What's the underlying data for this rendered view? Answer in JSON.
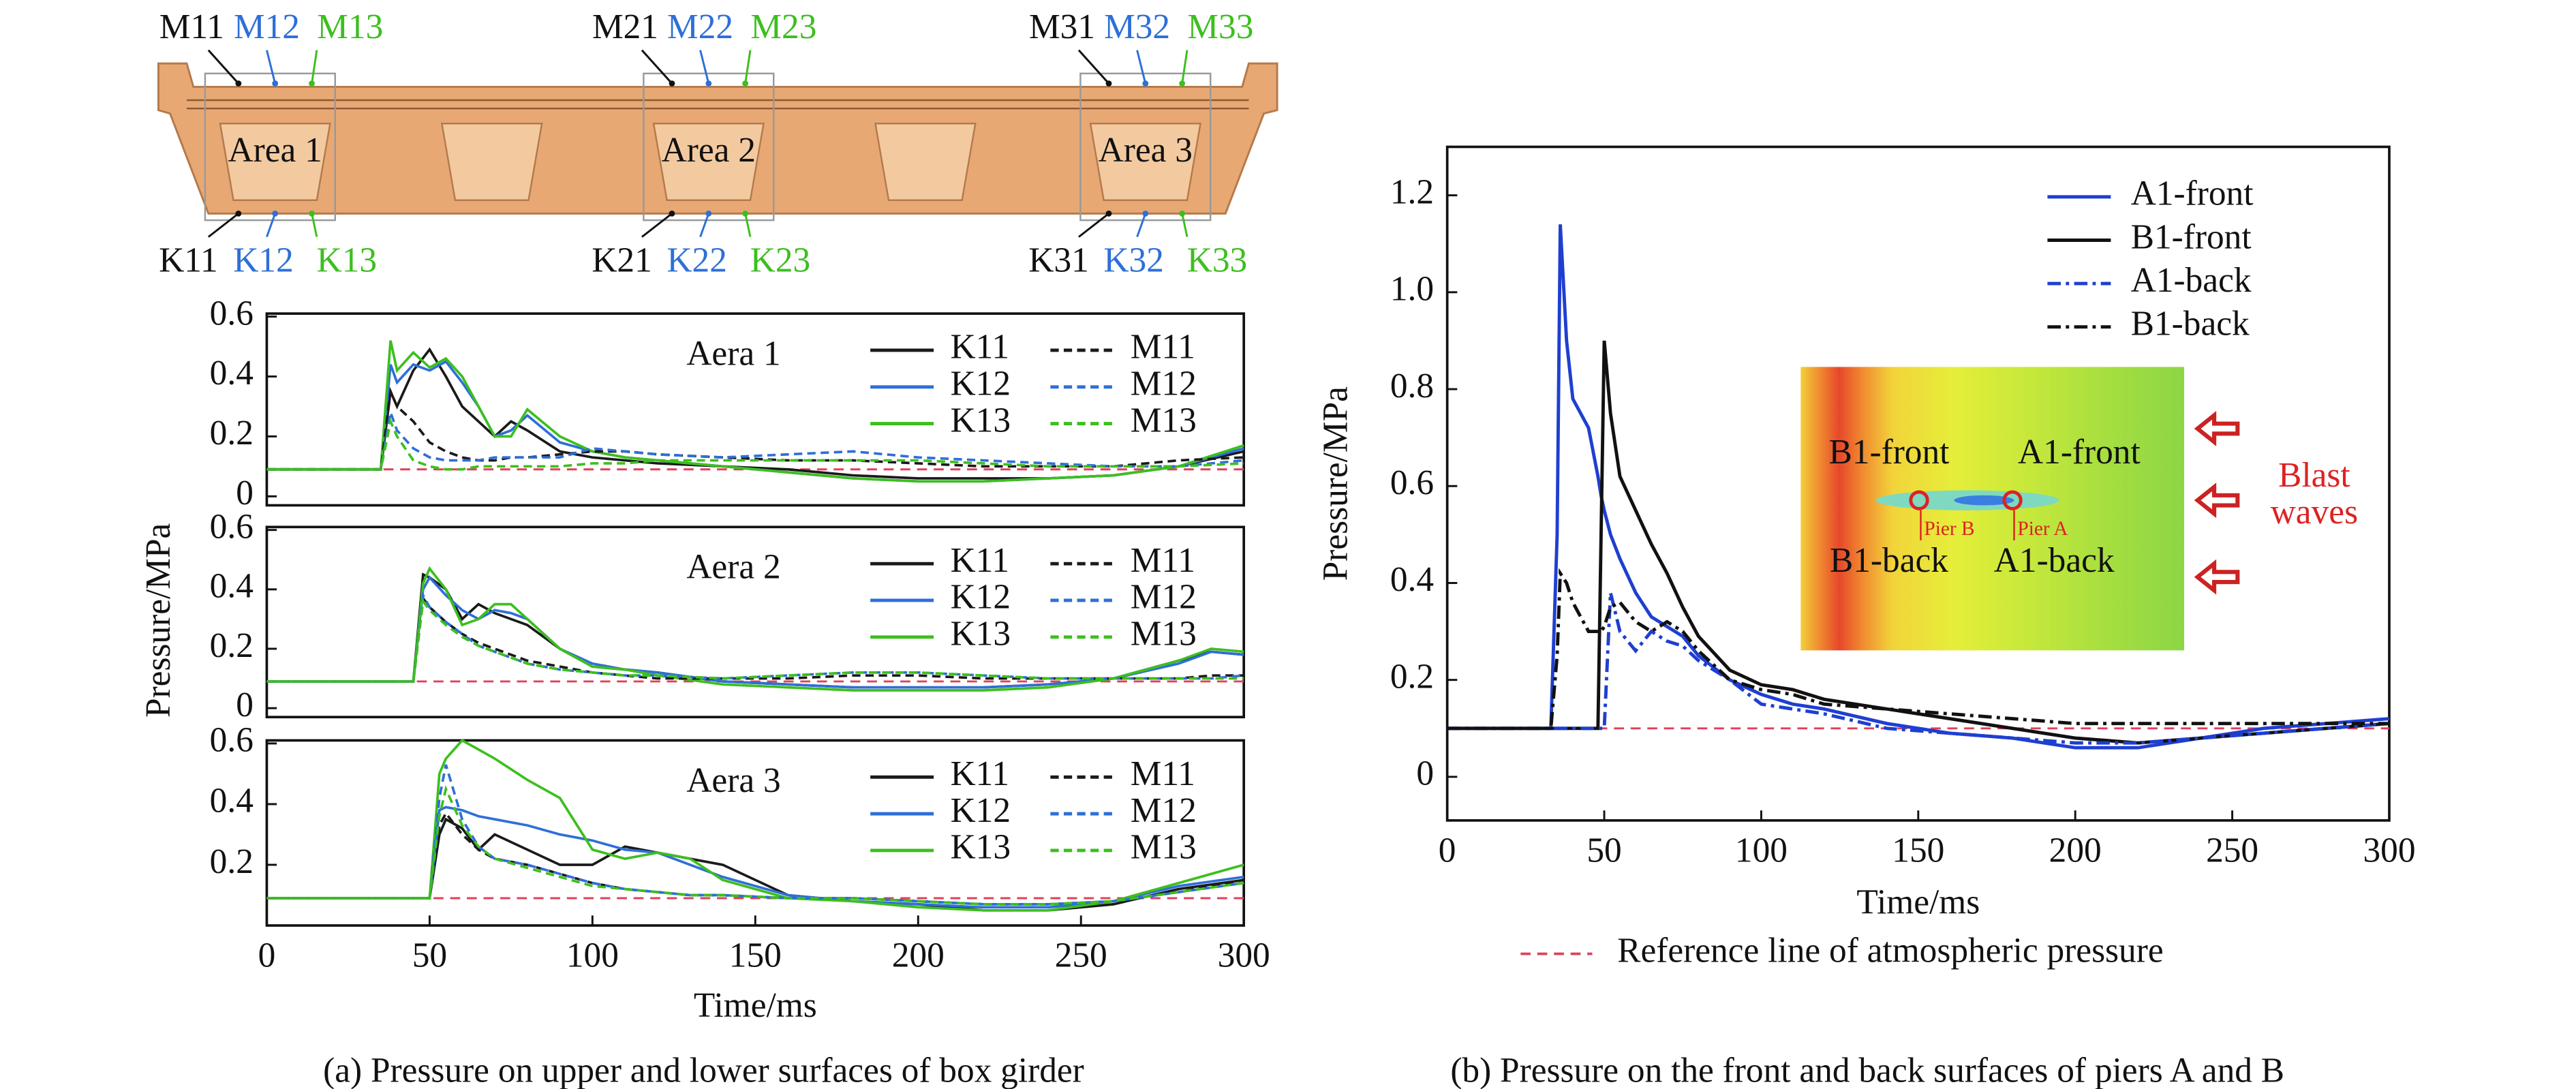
{
  "figure": {
    "captions": [
      "(a) Pressure on upper and lower surfaces of box girder",
      "(b) Pressure on the front and back surfaces of piers A and B"
    ]
  },
  "diagram": {
    "top_labels": [
      [
        "M11",
        "M12",
        "M13"
      ],
      [
        "M21",
        "M22",
        "M23"
      ],
      [
        "M31",
        "M32",
        "M33"
      ]
    ],
    "bottom_labels": [
      [
        "K11",
        "K12",
        "K13"
      ],
      [
        "K21",
        "K22",
        "K23"
      ],
      [
        "K31",
        "K32",
        "K33"
      ]
    ],
    "areas": [
      "Area 1",
      "Area 2",
      "Area 3"
    ]
  },
  "inset": {
    "labels": [
      "B1-front",
      "A1-front",
      "B1-back",
      "A1-back"
    ],
    "piers": [
      "Pier B",
      "Pier A"
    ],
    "blast": [
      "Blast",
      "waves"
    ]
  },
  "chart_data": [
    {
      "type": "line",
      "title": "Aera 1",
      "reference": 0.09,
      "ylim": [
        -0.03,
        0.61
      ],
      "yticks": [
        0,
        0.2,
        0.4,
        0.6
      ],
      "xlim": [
        0,
        300
      ],
      "x": [
        0,
        35,
        38,
        40,
        45,
        50,
        55,
        60,
        65,
        70,
        75,
        80,
        90,
        100,
        110,
        120,
        140,
        160,
        180,
        200,
        220,
        240,
        260,
        280,
        300
      ],
      "series": [
        {
          "name": "K11",
          "color": "#1a1a1a",
          "style": "solid",
          "values": [
            0.09,
            0.09,
            0.35,
            0.3,
            0.42,
            0.49,
            0.4,
            0.3,
            0.25,
            0.2,
            0.25,
            0.22,
            0.15,
            0.13,
            0.12,
            0.11,
            0.1,
            0.09,
            0.07,
            0.06,
            0.06,
            0.06,
            0.07,
            0.1,
            0.15
          ]
        },
        {
          "name": "K12",
          "color": "#2e6fd8",
          "style": "solid",
          "values": [
            0.09,
            0.09,
            0.44,
            0.38,
            0.44,
            0.42,
            0.45,
            0.38,
            0.3,
            0.2,
            0.22,
            0.27,
            0.18,
            0.15,
            0.13,
            0.12,
            0.1,
            0.08,
            0.06,
            0.05,
            0.05,
            0.06,
            0.07,
            0.1,
            0.16
          ]
        },
        {
          "name": "K13",
          "color": "#3cbf1e",
          "style": "solid",
          "values": [
            0.09,
            0.09,
            0.52,
            0.42,
            0.48,
            0.43,
            0.46,
            0.4,
            0.3,
            0.2,
            0.2,
            0.29,
            0.2,
            0.15,
            0.13,
            0.12,
            0.1,
            0.08,
            0.06,
            0.05,
            0.05,
            0.06,
            0.07,
            0.1,
            0.17
          ]
        },
        {
          "name": "M11",
          "color": "#1a1a1a",
          "style": "dash",
          "values": [
            0.09,
            0.09,
            0.35,
            0.3,
            0.25,
            0.18,
            0.15,
            0.13,
            0.12,
            0.12,
            0.13,
            0.13,
            0.14,
            0.15,
            0.15,
            0.14,
            0.13,
            0.12,
            0.12,
            0.11,
            0.1,
            0.1,
            0.1,
            0.12,
            0.13
          ]
        },
        {
          "name": "M12",
          "color": "#2e6fd8",
          "style": "dash",
          "values": [
            0.09,
            0.09,
            0.28,
            0.22,
            0.16,
            0.13,
            0.12,
            0.12,
            0.12,
            0.13,
            0.13,
            0.13,
            0.13,
            0.16,
            0.15,
            0.14,
            0.13,
            0.14,
            0.15,
            0.13,
            0.12,
            0.11,
            0.1,
            0.1,
            0.12
          ]
        },
        {
          "name": "M13",
          "color": "#3cbf1e",
          "style": "dash",
          "values": [
            0.09,
            0.09,
            0.25,
            0.2,
            0.12,
            0.1,
            0.09,
            0.09,
            0.1,
            0.1,
            0.1,
            0.1,
            0.1,
            0.11,
            0.11,
            0.12,
            0.12,
            0.12,
            0.12,
            0.12,
            0.11,
            0.1,
            0.1,
            0.1,
            0.11
          ]
        }
      ]
    },
    {
      "type": "line",
      "title": "Aera 2",
      "ylabel": "Pressure/MPa",
      "reference": 0.09,
      "ylim": [
        -0.03,
        0.61
      ],
      "yticks": [
        0,
        0.2,
        0.4,
        0.6
      ],
      "xlim": [
        0,
        300
      ],
      "x": [
        0,
        45,
        48,
        50,
        55,
        60,
        65,
        70,
        75,
        80,
        90,
        100,
        110,
        120,
        140,
        160,
        180,
        200,
        220,
        240,
        260,
        280,
        290,
        300
      ],
      "series": [
        {
          "name": "K11",
          "color": "#1a1a1a",
          "style": "solid",
          "values": [
            0.09,
            0.09,
            0.45,
            0.44,
            0.4,
            0.3,
            0.35,
            0.32,
            0.3,
            0.28,
            0.2,
            0.14,
            0.13,
            0.12,
            0.09,
            0.08,
            0.07,
            0.07,
            0.07,
            0.08,
            0.1,
            0.16,
            0.19,
            0.18
          ]
        },
        {
          "name": "K12",
          "color": "#2e6fd8",
          "style": "solid",
          "values": [
            0.09,
            0.09,
            0.4,
            0.44,
            0.38,
            0.33,
            0.3,
            0.33,
            0.32,
            0.3,
            0.2,
            0.15,
            0.13,
            0.12,
            0.09,
            0.08,
            0.07,
            0.07,
            0.07,
            0.08,
            0.1,
            0.15,
            0.19,
            0.18
          ]
        },
        {
          "name": "K13",
          "color": "#3cbf1e",
          "style": "solid",
          "values": [
            0.09,
            0.09,
            0.42,
            0.47,
            0.4,
            0.28,
            0.3,
            0.35,
            0.35,
            0.3,
            0.2,
            0.14,
            0.13,
            0.11,
            0.08,
            0.07,
            0.06,
            0.06,
            0.06,
            0.07,
            0.1,
            0.16,
            0.2,
            0.19
          ]
        },
        {
          "name": "M11",
          "color": "#1a1a1a",
          "style": "dash",
          "values": [
            0.09,
            0.09,
            0.37,
            0.34,
            0.29,
            0.25,
            0.22,
            0.2,
            0.18,
            0.16,
            0.14,
            0.12,
            0.11,
            0.1,
            0.1,
            0.1,
            0.11,
            0.11,
            0.1,
            0.1,
            0.1,
            0.1,
            0.11,
            0.11
          ]
        },
        {
          "name": "M12",
          "color": "#2e6fd8",
          "style": "dash",
          "values": [
            0.09,
            0.09,
            0.38,
            0.34,
            0.29,
            0.25,
            0.21,
            0.19,
            0.17,
            0.15,
            0.13,
            0.12,
            0.11,
            0.11,
            0.1,
            0.11,
            0.12,
            0.12,
            0.11,
            0.1,
            0.1,
            0.1,
            0.1,
            0.11
          ]
        },
        {
          "name": "M13",
          "color": "#3cbf1e",
          "style": "dash",
          "values": [
            0.09,
            0.09,
            0.36,
            0.33,
            0.28,
            0.24,
            0.21,
            0.19,
            0.17,
            0.15,
            0.13,
            0.12,
            0.11,
            0.11,
            0.1,
            0.11,
            0.12,
            0.12,
            0.11,
            0.1,
            0.1,
            0.1,
            0.1,
            0.1
          ]
        }
      ]
    },
    {
      "type": "line",
      "title": "Aera 3",
      "xlabel": "Time/ms",
      "reference": 0.09,
      "ylim": [
        0,
        0.61
      ],
      "yticks": [
        0.2,
        0.4,
        0.6
      ],
      "xlim": [
        0,
        300
      ],
      "xticks": [
        0,
        50,
        100,
        150,
        200,
        250,
        300
      ],
      "x": [
        0,
        50,
        53,
        55,
        60,
        65,
        70,
        80,
        90,
        100,
        110,
        120,
        130,
        140,
        160,
        180,
        200,
        220,
        240,
        260,
        280,
        300
      ],
      "series": [
        {
          "name": "K11",
          "color": "#1a1a1a",
          "style": "solid",
          "values": [
            0.09,
            0.09,
            0.3,
            0.35,
            0.32,
            0.25,
            0.3,
            0.25,
            0.2,
            0.2,
            0.26,
            0.24,
            0.22,
            0.2,
            0.1,
            0.08,
            0.07,
            0.05,
            0.05,
            0.07,
            0.12,
            0.15
          ]
        },
        {
          "name": "K12",
          "color": "#2e6fd8",
          "style": "solid",
          "values": [
            0.09,
            0.09,
            0.38,
            0.39,
            0.38,
            0.36,
            0.35,
            0.33,
            0.3,
            0.28,
            0.25,
            0.24,
            0.2,
            0.16,
            0.1,
            0.08,
            0.07,
            0.06,
            0.06,
            0.08,
            0.13,
            0.16
          ]
        },
        {
          "name": "K13",
          "color": "#3cbf1e",
          "style": "solid",
          "values": [
            0.09,
            0.09,
            0.5,
            0.55,
            0.61,
            0.58,
            0.55,
            0.48,
            0.42,
            0.25,
            0.22,
            0.24,
            0.22,
            0.15,
            0.09,
            0.08,
            0.06,
            0.05,
            0.05,
            0.08,
            0.14,
            0.2
          ]
        },
        {
          "name": "M11",
          "color": "#1a1a1a",
          "style": "dash",
          "values": [
            0.09,
            0.09,
            0.33,
            0.37,
            0.3,
            0.25,
            0.22,
            0.2,
            0.17,
            0.14,
            0.12,
            0.11,
            0.1,
            0.1,
            0.09,
            0.09,
            0.08,
            0.07,
            0.07,
            0.08,
            0.11,
            0.15
          ]
        },
        {
          "name": "M12",
          "color": "#2e6fd8",
          "style": "dash",
          "values": [
            0.09,
            0.09,
            0.42,
            0.53,
            0.35,
            0.26,
            0.22,
            0.2,
            0.17,
            0.14,
            0.12,
            0.11,
            0.1,
            0.1,
            0.09,
            0.09,
            0.08,
            0.07,
            0.07,
            0.08,
            0.11,
            0.14
          ]
        },
        {
          "name": "M13",
          "color": "#3cbf1e",
          "style": "dash",
          "values": [
            0.09,
            0.09,
            0.36,
            0.45,
            0.33,
            0.26,
            0.22,
            0.19,
            0.16,
            0.13,
            0.12,
            0.11,
            0.1,
            0.1,
            0.09,
            0.09,
            0.08,
            0.07,
            0.07,
            0.08,
            0.11,
            0.14
          ]
        }
      ]
    },
    {
      "type": "line",
      "xlabel": "Time/ms",
      "ylabel": "Pressure/MPa",
      "reference": 0.1,
      "reference_label": "Reference line of atmospheric pressure",
      "xlim": [
        0,
        300
      ],
      "xticks": [
        0,
        50,
        100,
        150,
        200,
        250,
        300
      ],
      "ylim": [
        -0.09,
        1.3
      ],
      "yticks": [
        0,
        0.2,
        0.4,
        0.6,
        0.8,
        {
          "value": 1,
          "label": "1.0"
        },
        1.2
      ],
      "x": [
        0,
        33,
        35,
        36,
        38,
        40,
        45,
        48,
        49,
        50,
        52,
        55,
        60,
        65,
        70,
        75,
        80,
        90,
        100,
        110,
        120,
        140,
        160,
        180,
        200,
        220,
        240,
        260,
        280,
        300
      ],
      "series": [
        {
          "name": "A1-front",
          "color": "#1f3fd0",
          "style": "solid",
          "values": [
            0.1,
            0.1,
            0.5,
            1.14,
            0.9,
            0.78,
            0.72,
            0.62,
            0.58,
            0.55,
            0.5,
            0.45,
            0.38,
            0.33,
            0.31,
            0.29,
            0.25,
            0.2,
            0.17,
            0.15,
            0.14,
            0.11,
            0.09,
            0.08,
            0.06,
            0.06,
            0.08,
            0.1,
            0.11,
            0.12
          ]
        },
        {
          "name": "B1-front",
          "color": "#111111",
          "style": "solid",
          "values": [
            0.1,
            0.1,
            0.1,
            0.1,
            0.1,
            0.1,
            0.1,
            0.1,
            0.5,
            0.9,
            0.75,
            0.62,
            0.55,
            0.48,
            0.42,
            0.35,
            0.29,
            0.22,
            0.19,
            0.18,
            0.16,
            0.14,
            0.12,
            0.1,
            0.08,
            0.07,
            0.08,
            0.09,
            0.1,
            0.11
          ]
        },
        {
          "name": "A1-back",
          "color": "#1f3fd0",
          "style": "dashdot",
          "values": [
            0.1,
            0.1,
            0.1,
            0.1,
            0.1,
            0.1,
            0.1,
            0.1,
            0.1,
            0.1,
            0.38,
            0.3,
            0.26,
            0.3,
            0.28,
            0.27,
            0.24,
            0.2,
            0.15,
            0.14,
            0.13,
            0.1,
            0.09,
            0.08,
            0.07,
            0.07,
            0.08,
            0.09,
            0.1,
            0.11
          ]
        },
        {
          "name": "B1-back",
          "color": "#111111",
          "style": "dashdot",
          "values": [
            0.1,
            0.1,
            0.25,
            0.42,
            0.4,
            0.36,
            0.3,
            0.3,
            0.3,
            0.31,
            0.35,
            0.36,
            0.32,
            0.3,
            0.32,
            0.3,
            0.26,
            0.2,
            0.18,
            0.17,
            0.15,
            0.14,
            0.13,
            0.12,
            0.11,
            0.11,
            0.11,
            0.11,
            0.11,
            0.11
          ]
        }
      ]
    }
  ]
}
